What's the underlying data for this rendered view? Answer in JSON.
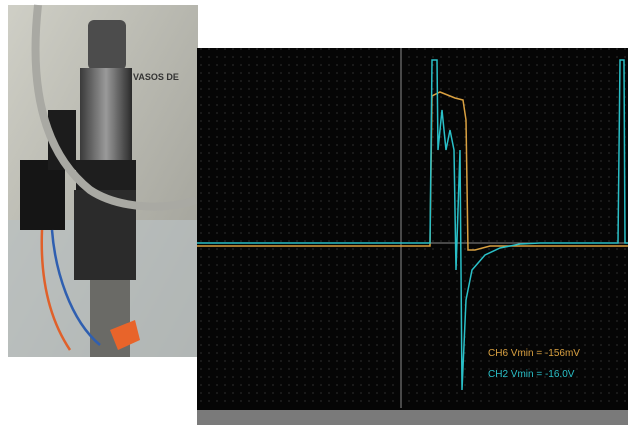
{
  "photo": {
    "label": "VASOS DE"
  },
  "scope": {
    "readouts": [
      "CH6 Vmin = -156mV",
      "CH2 Vmin = -16.0V"
    ]
  }
}
